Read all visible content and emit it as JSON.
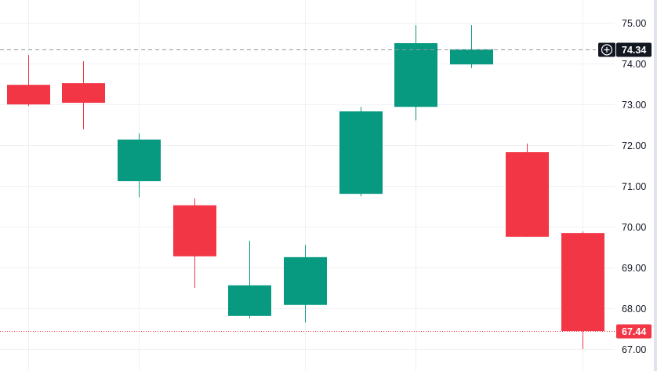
{
  "chart_data": {
    "type": "candlestick",
    "title": "",
    "xlabel": "",
    "ylabel": "",
    "ylim": [
      66.6,
      75.55
    ],
    "y_ticks": [
      "75.00",
      "74.00",
      "73.00",
      "72.00",
      "71.00",
      "70.00",
      "69.00",
      "68.00",
      "67.00"
    ],
    "grid": true,
    "candles": [
      {
        "open": 73.47,
        "high": 74.2,
        "low": 72.95,
        "close": 72.99
      },
      {
        "open": 73.51,
        "high": 74.05,
        "low": 72.38,
        "close": 73.03
      },
      {
        "open": 71.11,
        "high": 72.28,
        "low": 70.72,
        "close": 72.13
      },
      {
        "open": 70.52,
        "high": 70.69,
        "low": 68.5,
        "close": 69.27
      },
      {
        "open": 67.81,
        "high": 69.65,
        "low": 67.75,
        "close": 68.56
      },
      {
        "open": 68.08,
        "high": 69.55,
        "low": 67.65,
        "close": 69.25
      },
      {
        "open": 70.8,
        "high": 72.93,
        "low": 70.74,
        "close": 72.82
      },
      {
        "open": 72.93,
        "high": 74.93,
        "low": 72.6,
        "close": 74.49
      },
      {
        "open": 73.97,
        "high": 74.93,
        "low": 73.88,
        "close": 74.34
      },
      {
        "open": 71.82,
        "high": 72.03,
        "low": 69.75,
        "close": 69.75
      },
      {
        "open": 69.84,
        "high": 69.88,
        "low": 67.0,
        "close": 67.44
      }
    ],
    "crosshair_price": "74.34",
    "last_price": "67.44",
    "colors": {
      "up": "#089981",
      "down": "#f23645",
      "grid": "#f0f1f3",
      "label_bg": "#131722"
    }
  }
}
